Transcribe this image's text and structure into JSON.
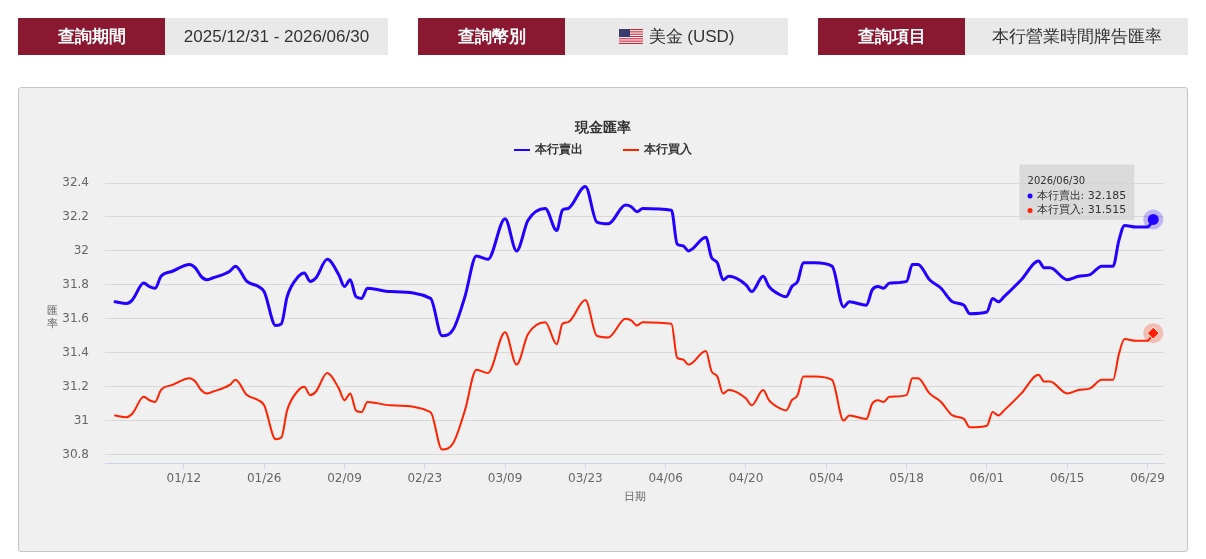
{
  "chart_data": {
    "type": "line",
    "title": "現金匯率",
    "xlabel": "日期",
    "ylabel": "匯率",
    "x": [
      "2025-12-31",
      "2026-01-02",
      "2026-01-03",
      "2026-01-05",
      "2026-01-06",
      "2026-01-07",
      "2026-01-08",
      "2026-01-10",
      "2026-01-13",
      "2026-01-14",
      "2026-01-15",
      "2026-01-16",
      "2026-01-17",
      "2026-01-20",
      "2026-01-21",
      "2026-01-23",
      "2026-01-25",
      "2026-01-26",
      "2026-01-28",
      "2026-01-29",
      "2026-01-30",
      "2026-02-01",
      "2026-02-02",
      "2026-02-03",
      "2026-02-04",
      "2026-02-06",
      "2026-02-08",
      "2026-02-09",
      "2026-02-10",
      "2026-02-11",
      "2026-02-12",
      "2026-02-13",
      "2026-02-17",
      "2026-02-24",
      "2026-02-26",
      "2026-02-28",
      "2026-03-02",
      "2026-03-04",
      "2026-03-06",
      "2026-03-09",
      "2026-03-11",
      "2026-03-13",
      "2026-03-16",
      "2026-03-18",
      "2026-03-19",
      "2026-03-20",
      "2026-03-23",
      "2026-03-25",
      "2026-03-27",
      "2026-03-30",
      "2026-03-31",
      "2026-04-01",
      "2026-04-02",
      "2026-04-07",
      "2026-04-08",
      "2026-04-09",
      "2026-04-10",
      "2026-04-13",
      "2026-04-14",
      "2026-04-15",
      "2026-04-16",
      "2026-04-17",
      "2026-04-20",
      "2026-04-21",
      "2026-04-23",
      "2026-04-24",
      "2026-04-26",
      "2026-04-27",
      "2026-04-28",
      "2026-04-29",
      "2026-04-30",
      "2026-05-02",
      "2026-05-05",
      "2026-05-07",
      "2026-05-08",
      "2026-05-11",
      "2026-05-12",
      "2026-05-13",
      "2026-05-14",
      "2026-05-15",
      "2026-05-18",
      "2026-05-19",
      "2026-05-20",
      "2026-05-22",
      "2026-05-24",
      "2026-05-26",
      "2026-05-28",
      "2026-05-29",
      "2026-06-01",
      "2026-06-02",
      "2026-06-03",
      "2026-06-04",
      "2026-06-07",
      "2026-06-10",
      "2026-06-11",
      "2026-06-12",
      "2026-06-15",
      "2026-06-17",
      "2026-06-19",
      "2026-06-21",
      "2026-06-23",
      "2026-06-24",
      "2026-06-25",
      "2026-06-27",
      "2026-06-29",
      "2026-06-30"
    ],
    "series": [
      {
        "name": "本行賣出",
        "color": "#2200ff",
        "values": [
          31.7,
          31.69,
          31.71,
          31.81,
          31.79,
          31.78,
          31.85,
          31.88,
          31.92,
          31.9,
          31.85,
          31.83,
          31.84,
          31.88,
          31.91,
          31.82,
          31.79,
          31.76,
          31.56,
          31.57,
          31.73,
          31.85,
          31.87,
          31.82,
          31.84,
          31.95,
          31.86,
          31.79,
          31.83,
          31.73,
          31.72,
          31.78,
          31.76,
          31.72,
          31.5,
          31.54,
          31.73,
          31.97,
          31.95,
          32.19,
          32.0,
          32.18,
          32.25,
          32.12,
          32.24,
          32.25,
          32.38,
          32.17,
          32.16,
          32.27,
          32.26,
          32.23,
          32.25,
          32.24,
          32.04,
          32.03,
          32.0,
          32.08,
          31.96,
          31.93,
          31.83,
          31.85,
          31.8,
          31.76,
          31.85,
          31.79,
          31.74,
          31.73,
          31.79,
          31.82,
          31.93,
          31.93,
          31.91,
          31.67,
          31.7,
          31.68,
          31.77,
          31.79,
          31.78,
          31.81,
          31.82,
          31.92,
          31.92,
          31.83,
          31.78,
          31.7,
          31.68,
          31.63,
          31.64,
          31.72,
          31.7,
          31.73,
          31.83,
          31.94,
          31.9,
          31.9,
          31.83,
          31.85,
          31.86,
          31.91,
          31.91,
          32.06,
          32.15,
          32.14,
          32.14,
          32.185
        ]
      },
      {
        "name": "本行買入",
        "color": "#ff2200",
        "values": [
          31.03,
          31.02,
          31.04,
          31.14,
          31.12,
          31.11,
          31.18,
          31.21,
          31.25,
          31.23,
          31.18,
          31.16,
          31.17,
          31.21,
          31.24,
          31.15,
          31.12,
          31.09,
          30.89,
          30.9,
          31.06,
          31.18,
          31.2,
          31.15,
          31.17,
          31.28,
          31.19,
          31.12,
          31.16,
          31.06,
          31.05,
          31.11,
          31.09,
          31.05,
          30.83,
          30.87,
          31.06,
          31.3,
          31.28,
          31.52,
          31.33,
          31.51,
          31.58,
          31.45,
          31.57,
          31.58,
          31.71,
          31.5,
          31.49,
          31.6,
          31.59,
          31.56,
          31.58,
          31.57,
          31.37,
          31.36,
          31.33,
          31.41,
          31.29,
          31.26,
          31.16,
          31.18,
          31.13,
          31.09,
          31.18,
          31.12,
          31.07,
          31.06,
          31.12,
          31.15,
          31.26,
          31.26,
          31.24,
          31.0,
          31.03,
          31.01,
          31.1,
          31.12,
          31.11,
          31.14,
          31.15,
          31.25,
          31.25,
          31.16,
          31.11,
          31.03,
          31.01,
          30.96,
          30.97,
          31.05,
          31.03,
          31.06,
          31.16,
          31.27,
          31.23,
          31.23,
          31.16,
          31.18,
          31.19,
          31.24,
          31.24,
          31.39,
          31.48,
          31.47,
          31.47,
          31.515
        ]
      }
    ],
    "xlim": [
      "2025-12-29T06:00",
      "2026-07-01T21:00"
    ],
    "xticks": [
      {
        "value": "2026-01-12",
        "label": "01/12"
      },
      {
        "value": "2026-01-26",
        "label": "01/26"
      },
      {
        "value": "2026-02-09",
        "label": "02/09"
      },
      {
        "value": "2026-02-23",
        "label": "02/23"
      },
      {
        "value": "2026-03-09",
        "label": "03/09"
      },
      {
        "value": "2026-03-23",
        "label": "03/23"
      },
      {
        "value": "2026-04-06",
        "label": "04/06"
      },
      {
        "value": "2026-04-20",
        "label": "04/20"
      },
      {
        "value": "2026-05-04",
        "label": "05/04"
      },
      {
        "value": "2026-05-18",
        "label": "05/18"
      },
      {
        "value": "2026-06-01",
        "label": "06/01"
      },
      {
        "value": "2026-06-15",
        "label": "06/15"
      },
      {
        "value": "2026-06-29",
        "label": "06/29"
      }
    ],
    "ylim": [
      30.75,
      32.4
    ],
    "yticks": [
      30.8,
      31,
      31.2,
      31.4,
      31.6,
      31.8,
      32,
      32.2,
      32.4
    ],
    "grid": "y",
    "legend": "top",
    "marker": "none",
    "line_style": "solid",
    "annotations": [
      "查詢期間",
      "2025/12/31 - 2026/06/30",
      "查詢幣別",
      "美金 (USD)",
      "查詢項目",
      "本行營業時間牌告匯率",
      "2026/06/30",
      {
        "text": "本行賣出: 32.185",
        "x": "2026-06-30",
        "y": 32.185
      },
      "本行買入: 31.515"
    ]
  }
}
